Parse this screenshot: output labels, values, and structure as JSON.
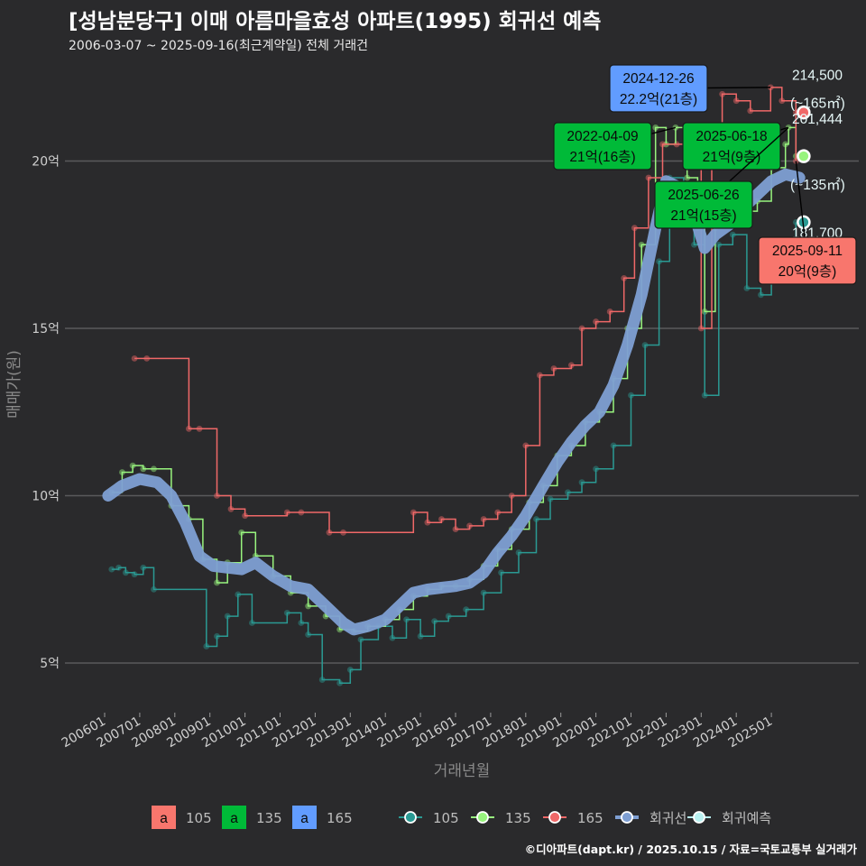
{
  "header": {
    "title": "[성남분당구] 이매 아름마을효성 아파트(1995) 회귀선 예측",
    "subtitle": "2006-03-07 ~ 2025-09-16(최근계약일) 전체 거래건"
  },
  "caption": "©디아파트(dapt.kr) / 2025.10.15 / 자료=국토교통부 실거래가",
  "colors": {
    "background": "#2a2a2c",
    "grid": "#5a5a5c",
    "s105": "#2a9a93",
    "s135": "#98f47e",
    "s165": "#f06868",
    "regression": "#7e9fd3",
    "prediction": "#b8f1f1",
    "label105": "#f8766d",
    "label135": "#00ba38",
    "label165": "#619cff"
  },
  "chart_data": {
    "type": "line",
    "xlabel": "거래년월",
    "ylabel": "매매가(원)",
    "x_ticks": [
      "200601",
      "200701",
      "200801",
      "200901",
      "201001",
      "201101",
      "201201",
      "201301",
      "201401",
      "201501",
      "201601",
      "201701",
      "201801",
      "201901",
      "202001",
      "202101",
      "202201",
      "202301",
      "202401",
      "202501"
    ],
    "y_ticks": [
      {
        "value": 50000,
        "label": "5억"
      },
      {
        "value": 100000,
        "label": "10억"
      },
      {
        "value": 150000,
        "label": "15억"
      },
      {
        "value": 200000,
        "label": "20억"
      }
    ],
    "xlim": [
      2005.5,
      2026.5
    ],
    "ylim": [
      35000,
      230000
    ],
    "series": [
      {
        "name": "105",
        "points": [
          [
            2006.2,
            78000
          ],
          [
            2006.4,
            78500
          ],
          [
            2006.6,
            77000
          ],
          [
            2006.85,
            76500
          ],
          [
            2007.1,
            78500
          ],
          [
            2007.4,
            72000
          ],
          [
            2008.9,
            55000
          ],
          [
            2009.2,
            58000
          ],
          [
            2009.5,
            64000
          ],
          [
            2009.8,
            70500
          ],
          [
            2010.2,
            62000
          ],
          [
            2011.2,
            65000
          ],
          [
            2011.6,
            62000
          ],
          [
            2011.8,
            58500
          ],
          [
            2012.2,
            45000
          ],
          [
            2012.7,
            44000
          ],
          [
            2013.0,
            48000
          ],
          [
            2013.3,
            57000
          ],
          [
            2013.8,
            61000
          ],
          [
            2014.2,
            57500
          ],
          [
            2014.6,
            63000
          ],
          [
            2015.0,
            58000
          ],
          [
            2015.4,
            62500
          ],
          [
            2015.8,
            64000
          ],
          [
            2016.3,
            66000
          ],
          [
            2016.8,
            71000
          ],
          [
            2017.3,
            77000
          ],
          [
            2017.8,
            83000
          ],
          [
            2018.3,
            93000
          ],
          [
            2018.7,
            99000
          ],
          [
            2019.2,
            101000
          ],
          [
            2019.6,
            104000
          ],
          [
            2020.0,
            108000
          ],
          [
            2020.5,
            115000
          ],
          [
            2021.0,
            130000
          ],
          [
            2021.4,
            145000
          ],
          [
            2021.8,
            170000
          ],
          [
            2022.1,
            195000
          ],
          [
            2022.5,
            185000
          ],
          [
            2022.8,
            175000
          ],
          [
            2023.1,
            130000
          ],
          [
            2023.5,
            175000
          ],
          [
            2023.9,
            178000
          ],
          [
            2024.3,
            162000
          ],
          [
            2024.7,
            160000
          ],
          [
            2025.0,
            165000
          ],
          [
            2025.5,
            175000
          ],
          [
            2025.7,
            181700
          ]
        ]
      },
      {
        "name": "135",
        "points": [
          [
            2006.2,
            101000
          ],
          [
            2006.5,
            107000
          ],
          [
            2006.8,
            109000
          ],
          [
            2007.1,
            108000
          ],
          [
            2007.4,
            108000
          ],
          [
            2007.9,
            97000
          ],
          [
            2008.4,
            93000
          ],
          [
            2008.8,
            81000
          ],
          [
            2009.2,
            74000
          ],
          [
            2009.5,
            80000
          ],
          [
            2009.9,
            89000
          ],
          [
            2010.3,
            82000
          ],
          [
            2010.8,
            76000
          ],
          [
            2011.3,
            71000
          ],
          [
            2011.8,
            67000
          ],
          [
            2012.3,
            64000
          ],
          [
            2012.7,
            60000
          ],
          [
            2013.1,
            59500
          ],
          [
            2013.5,
            61000
          ],
          [
            2014.0,
            63000
          ],
          [
            2014.4,
            66000
          ],
          [
            2014.8,
            70000
          ],
          [
            2015.2,
            72000
          ],
          [
            2015.6,
            73000
          ],
          [
            2016.0,
            73000
          ],
          [
            2016.4,
            75000
          ],
          [
            2016.8,
            79000
          ],
          [
            2017.2,
            84000
          ],
          [
            2017.6,
            90000
          ],
          [
            2018.1,
            98000
          ],
          [
            2018.5,
            103000
          ],
          [
            2018.9,
            112000
          ],
          [
            2019.3,
            115000
          ],
          [
            2019.7,
            122000
          ],
          [
            2020.1,
            125000
          ],
          [
            2020.5,
            135000
          ],
          [
            2020.9,
            150000
          ],
          [
            2021.3,
            175000
          ],
          [
            2021.7,
            210000
          ],
          [
            2022.0,
            205000
          ],
          [
            2022.27,
            210000
          ],
          [
            2022.6,
            195000
          ],
          [
            2022.9,
            180000
          ],
          [
            2023.1,
            155000
          ],
          [
            2023.4,
            180000
          ],
          [
            2023.8,
            182000
          ],
          [
            2024.2,
            185000
          ],
          [
            2024.6,
            188000
          ],
          [
            2025.0,
            198000
          ],
          [
            2025.4,
            205000
          ],
          [
            2025.49,
            210000
          ],
          [
            2025.7,
            201444
          ]
        ]
      },
      {
        "name": "165",
        "points": [
          [
            2006.85,
            141000
          ],
          [
            2007.2,
            141000
          ],
          [
            2008.4,
            120000
          ],
          [
            2008.7,
            120000
          ],
          [
            2009.2,
            100000
          ],
          [
            2009.6,
            96000
          ],
          [
            2010.0,
            94000
          ],
          [
            2011.2,
            95000
          ],
          [
            2011.6,
            95000
          ],
          [
            2012.4,
            89000
          ],
          [
            2012.8,
            89000
          ],
          [
            2014.8,
            95000
          ],
          [
            2015.2,
            92000
          ],
          [
            2015.6,
            93000
          ],
          [
            2016.0,
            90000
          ],
          [
            2016.4,
            91000
          ],
          [
            2016.8,
            93000
          ],
          [
            2017.2,
            95000
          ],
          [
            2017.6,
            100000
          ],
          [
            2018.0,
            115000
          ],
          [
            2018.4,
            136000
          ],
          [
            2018.8,
            138000
          ],
          [
            2019.3,
            139000
          ],
          [
            2019.6,
            150000
          ],
          [
            2020.0,
            152000
          ],
          [
            2020.4,
            155000
          ],
          [
            2020.8,
            165000
          ],
          [
            2021.1,
            180000
          ],
          [
            2021.5,
            195000
          ],
          [
            2021.9,
            205000
          ],
          [
            2022.3,
            205000
          ],
          [
            2022.7,
            203000
          ],
          [
            2023.0,
            150000
          ],
          [
            2023.3,
            202000
          ],
          [
            2023.6,
            220000
          ],
          [
            2024.0,
            218000
          ],
          [
            2024.4,
            215000
          ],
          [
            2024.98,
            222000
          ],
          [
            2025.3,
            218000
          ],
          [
            2025.7,
            200000
          ],
          [
            2025.7,
            214500
          ]
        ]
      },
      {
        "name": "회귀선",
        "points": [
          [
            2006.1,
            100000
          ],
          [
            2006.5,
            103000
          ],
          [
            2007.0,
            105000
          ],
          [
            2007.5,
            104000
          ],
          [
            2007.9,
            100000
          ],
          [
            2008.3,
            92000
          ],
          [
            2008.7,
            82000
          ],
          [
            2009.1,
            79000
          ],
          [
            2009.5,
            78500
          ],
          [
            2009.9,
            78000
          ],
          [
            2010.3,
            80000
          ],
          [
            2010.8,
            76000
          ],
          [
            2011.3,
            73000
          ],
          [
            2011.8,
            72000
          ],
          [
            2012.3,
            67000
          ],
          [
            2012.8,
            62000
          ],
          [
            2013.1,
            60000
          ],
          [
            2013.5,
            61000
          ],
          [
            2014.0,
            63000
          ],
          [
            2014.4,
            67000
          ],
          [
            2014.8,
            71000
          ],
          [
            2015.2,
            72000
          ],
          [
            2015.6,
            72500
          ],
          [
            2016.0,
            73000
          ],
          [
            2016.4,
            74000
          ],
          [
            2016.8,
            77000
          ],
          [
            2017.2,
            83000
          ],
          [
            2017.6,
            88000
          ],
          [
            2018.0,
            94000
          ],
          [
            2018.5,
            103000
          ],
          [
            2018.9,
            110000
          ],
          [
            2019.3,
            116000
          ],
          [
            2019.7,
            121000
          ],
          [
            2020.1,
            125000
          ],
          [
            2020.5,
            133000
          ],
          [
            2020.9,
            145000
          ],
          [
            2021.3,
            160000
          ],
          [
            2021.7,
            180000
          ],
          [
            2022.0,
            194000
          ],
          [
            2022.4,
            192000
          ],
          [
            2022.8,
            184000
          ],
          [
            2023.1,
            174000
          ],
          [
            2023.4,
            178000
          ],
          [
            2023.8,
            181000
          ],
          [
            2024.2,
            186000
          ],
          [
            2024.6,
            190000
          ],
          [
            2025.0,
            194000
          ],
          [
            2025.4,
            196000
          ],
          [
            2025.8,
            195000
          ]
        ]
      }
    ],
    "prediction": [
      {
        "name": "165",
        "value": 214500,
        "label": "214,500",
        "unit": "(~165㎡)",
        "x": 2025.92
      },
      {
        "name": "135",
        "value": 201444,
        "label": "201,444",
        "unit": "(~135㎡)",
        "x": 2025.92
      },
      {
        "name": "105",
        "value": 181700,
        "label": "181,700",
        "unit": "",
        "x": 2025.92
      }
    ],
    "annotations": [
      {
        "date": "2024-12-26",
        "text": "22.2억(21층)",
        "area": "165",
        "x": 2024.98,
        "y": 222000
      },
      {
        "date": "2022-04-09",
        "text": "21억(16층)",
        "area": "135",
        "x": 2022.27,
        "y": 210000
      },
      {
        "date": "2025-06-18",
        "text": "21억(9층)",
        "area": "135",
        "x": 2025.46,
        "y": 210000
      },
      {
        "date": "2025-06-26",
        "text": "21억(15층)",
        "area": "135",
        "x": 2025.49,
        "y": 210000
      },
      {
        "date": "2025-09-11",
        "text": "20억(9층)",
        "area": "105",
        "x": 2025.7,
        "y": 200000
      }
    ],
    "legend": {
      "placement": "bottom",
      "label_keys": [
        {
          "key": "a",
          "name": "105",
          "color": "#f8766d"
        },
        {
          "key": "a",
          "name": "135",
          "color": "#00ba38"
        },
        {
          "key": "a",
          "name": "165",
          "color": "#619cff"
        }
      ],
      "line_keys": [
        {
          "name": "105",
          "color": "#2a9a93"
        },
        {
          "name": "135",
          "color": "#98f47e"
        },
        {
          "name": "165",
          "color": "#f06868"
        },
        {
          "name": "회귀선",
          "color": "#7e9fd3"
        },
        {
          "name": "회귀예측",
          "color": "#b8f1f1"
        }
      ]
    }
  }
}
